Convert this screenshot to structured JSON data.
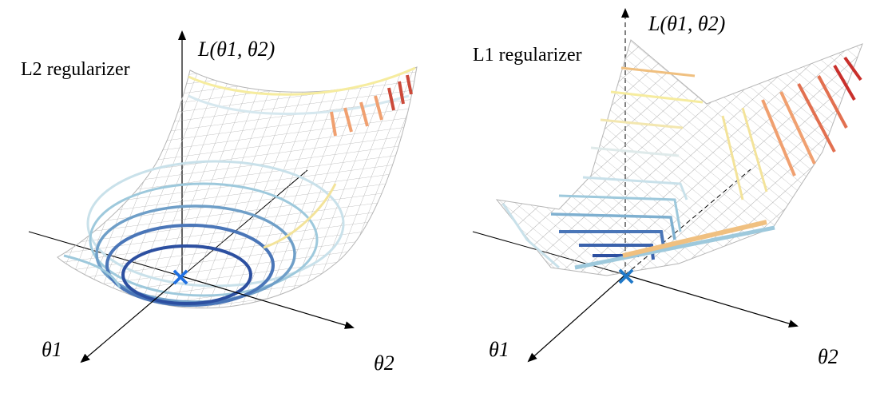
{
  "panels": [
    {
      "title": "L2 regularizer",
      "z_label": "L(θ1, θ2)",
      "x_label": "θ1",
      "y_label": "θ2",
      "minimum_marker": "×"
    },
    {
      "title": "L1 regularizer",
      "z_label": "L(θ1, θ2)",
      "x_label": "θ1",
      "y_label": "θ2",
      "minimum_marker": "×"
    }
  ],
  "colors": {
    "contour_low": "#2c4fa0",
    "contour_mid": "#9ec9dc",
    "contour_yellow": "#f3e39a",
    "contour_high": "#c9302c",
    "mesh": "#a9a9a9",
    "marker": "#1f6fe0"
  }
}
